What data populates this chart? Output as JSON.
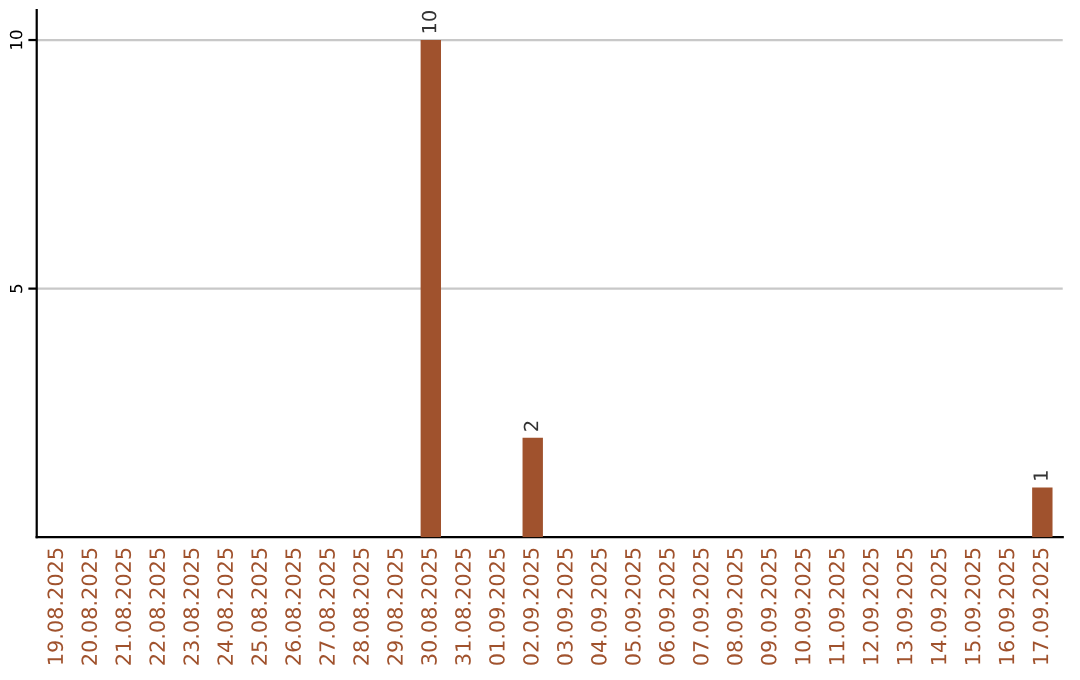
{
  "chart_data": {
    "type": "bar",
    "categories": [
      "19.08.2025",
      "20.08.2025",
      "21.08.2025",
      "22.08.2025",
      "23.08.2025",
      "24.08.2025",
      "25.08.2025",
      "26.08.2025",
      "27.08.2025",
      "28.08.2025",
      "29.08.2025",
      "30.08.2025",
      "31.08.2025",
      "01.09.2025",
      "02.09.2025",
      "03.09.2025",
      "04.09.2025",
      "05.09.2025",
      "06.09.2025",
      "07.09.2025",
      "08.09.2025",
      "09.09.2025",
      "10.09.2025",
      "11.09.2025",
      "12.09.2025",
      "13.09.2025",
      "14.09.2025",
      "15.09.2025",
      "16.09.2025",
      "17.09.2025"
    ],
    "values": [
      0,
      0,
      0,
      0,
      0,
      0,
      0,
      0,
      0,
      0,
      0,
      10,
      0,
      0,
      2,
      0,
      0,
      0,
      0,
      0,
      0,
      0,
      0,
      0,
      0,
      0,
      0,
      0,
      0,
      1
    ],
    "value_labels": [
      null,
      null,
      null,
      null,
      null,
      null,
      null,
      null,
      null,
      null,
      null,
      "10",
      null,
      null,
      "2",
      null,
      null,
      null,
      null,
      null,
      null,
      null,
      null,
      null,
      null,
      null,
      null,
      null,
      null,
      "1"
    ],
    "color": "#a0522d",
    "ylim": [
      0,
      10.6
    ],
    "yticks": [
      5,
      10
    ],
    "grid": "y",
    "legend": false
  }
}
